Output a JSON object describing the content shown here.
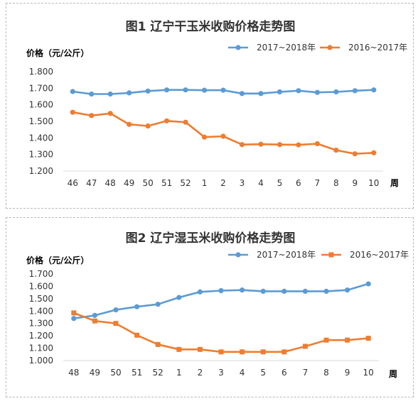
{
  "colors": {
    "series_2017_2018": "#5b9bd5",
    "series_2016_2017": "#ed7d31",
    "axis": "#d9d9d9",
    "text": "#333333"
  },
  "chart_data": [
    {
      "type": "line",
      "title": "图1 辽宁干玉米收购价格走势图",
      "ylabel": "价格（元/公斤）",
      "xlabel": "周",
      "categories": [
        "46",
        "47",
        "48",
        "49",
        "50",
        "51",
        "52",
        "1",
        "2",
        "3",
        "4",
        "5",
        "6",
        "7",
        "8",
        "9",
        "10"
      ],
      "ylim": [
        1.2,
        1.8
      ],
      "yticks": [
        "1.200",
        "1.300",
        "1.400",
        "1.500",
        "1.600",
        "1.700",
        "1.800"
      ],
      "grid": false,
      "legend_position": "top-right",
      "series": [
        {
          "name": "2017~2018年",
          "marker": "circle",
          "color": "#5b9bd5",
          "values": [
            1.68,
            1.665,
            1.665,
            1.672,
            1.683,
            1.69,
            1.69,
            1.688,
            1.688,
            1.668,
            1.668,
            1.678,
            1.685,
            1.675,
            1.678,
            1.685,
            1.69
          ]
        },
        {
          "name": "2016~2017年",
          "marker": "circle",
          "color": "#ed7d31",
          "values": [
            1.555,
            1.535,
            1.548,
            1.482,
            1.472,
            1.503,
            1.495,
            1.405,
            1.41,
            1.36,
            1.362,
            1.36,
            1.358,
            1.365,
            1.326,
            1.304,
            1.31
          ]
        }
      ]
    },
    {
      "type": "line",
      "title": "图2 辽宁湿玉米收购价格走势图",
      "ylabel": "价格（元/公斤）",
      "xlabel": "周",
      "categories": [
        "48",
        "49",
        "50",
        "51",
        "52",
        "1",
        "2",
        "3",
        "4",
        "5",
        "6",
        "7",
        "8",
        "9",
        "10"
      ],
      "ylim": [
        1.0,
        1.7
      ],
      "yticks": [
        "1.000",
        "1.100",
        "1.200",
        "1.300",
        "1.400",
        "1.500",
        "1.600",
        "1.700"
      ],
      "grid": false,
      "legend_position": "top-right",
      "series": [
        {
          "name": "2017~2018年",
          "marker": "circle",
          "color": "#5b9bd5",
          "values": [
            1.34,
            1.365,
            1.41,
            1.435,
            1.455,
            1.51,
            1.555,
            1.565,
            1.57,
            1.56,
            1.56,
            1.56,
            1.56,
            1.57,
            1.62
          ]
        },
        {
          "name": "2016~2017年",
          "marker": "square",
          "color": "#ed7d31",
          "values": [
            1.385,
            1.32,
            1.3,
            1.205,
            1.13,
            1.09,
            1.09,
            1.07,
            1.07,
            1.07,
            1.07,
            1.115,
            1.165,
            1.165,
            1.18
          ]
        }
      ]
    }
  ]
}
